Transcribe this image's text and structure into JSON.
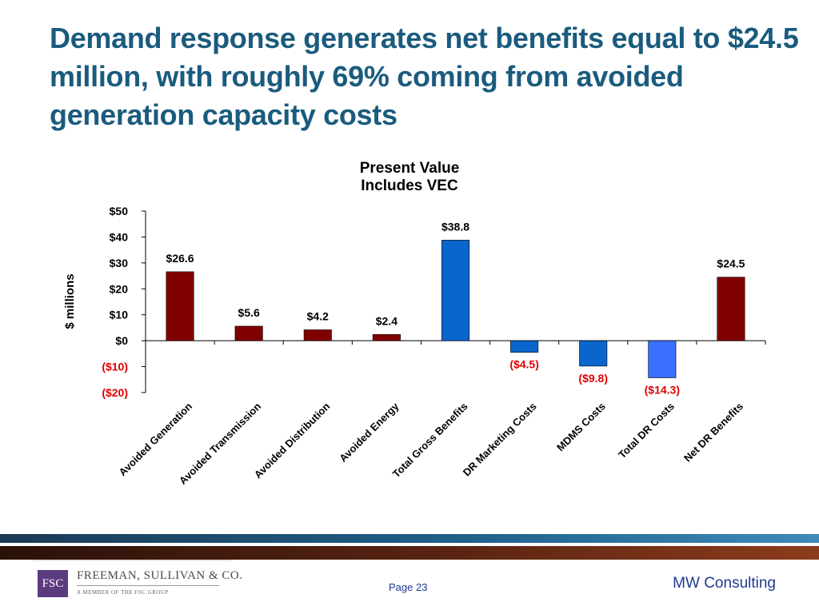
{
  "slide": {
    "title": "Demand response generates net benefits equal to $24.5 million, with roughly 69% coming from avoided generation capacity costs"
  },
  "chart_data": {
    "type": "bar",
    "title_lines": [
      "Present Value",
      "Includes VEC"
    ],
    "ylabel": "$ millions",
    "ylim": [
      -20,
      50
    ],
    "y_ticks": [
      {
        "value": 50,
        "label": "$50"
      },
      {
        "value": 40,
        "label": "$40"
      },
      {
        "value": 30,
        "label": "$30"
      },
      {
        "value": 20,
        "label": "$20"
      },
      {
        "value": 10,
        "label": "$10"
      },
      {
        "value": 0,
        "label": "$0"
      },
      {
        "value": -10,
        "label": "($10)"
      },
      {
        "value": -20,
        "label": "($20)"
      }
    ],
    "categories": [
      "Avoided Generation",
      "Avoided Transmission",
      "Avoided Distribution",
      "Avoided Energy",
      "Total Gross Benefits",
      "DR Marketing Costs",
      "MDMS Costs",
      "Total DR Costs",
      "Net DR Benefits"
    ],
    "values": [
      26.6,
      5.6,
      4.2,
      2.4,
      38.8,
      -4.5,
      -9.8,
      -14.3,
      24.5
    ],
    "data_labels": [
      "$26.6",
      "$5.6",
      "$4.2",
      "$2.4",
      "$38.8",
      "($4.5)",
      "($9.8)",
      "($14.3)",
      "$24.5"
    ],
    "bar_colors": [
      "#800000",
      "#800000",
      "#800000",
      "#800000",
      "#0a66cc",
      "#0a66cc",
      "#0a66cc",
      "#3a6fff",
      "#800000"
    ],
    "negative_label_color": "#e00000",
    "grid": false
  },
  "footer": {
    "logo": {
      "mark": "FSC",
      "name": "FREEMAN, SULLIVAN & CO.",
      "tagline": "A MEMBER OF THE FSC GROUP"
    },
    "page": "Page 23",
    "right": "MW Consulting"
  }
}
